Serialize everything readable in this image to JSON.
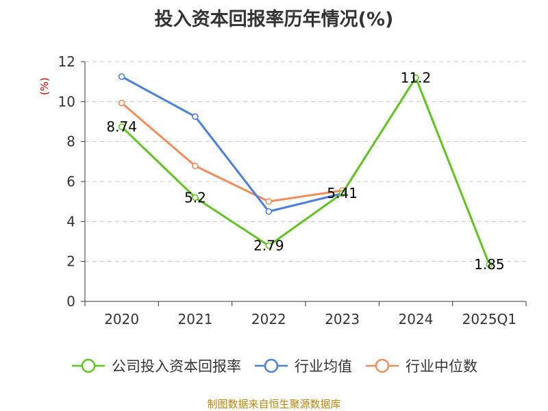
{
  "chart_data": {
    "type": "line",
    "title": "投入资本回报率历年情况(%)",
    "ylabel": "(%)",
    "xlabel": "",
    "categories": [
      "2020",
      "2021",
      "2022",
      "2023",
      "2024",
      "2025Q1"
    ],
    "ylim": [
      0,
      12
    ],
    "yticks": [
      0,
      2,
      4,
      6,
      8,
      10,
      12
    ],
    "grid": true,
    "series": [
      {
        "name": "公司投入资本回报率",
        "color": "#5fc41f",
        "values": [
          8.74,
          5.2,
          2.79,
          5.41,
          11.2,
          1.85
        ],
        "labels": [
          "8.74",
          "5.2",
          "2.79",
          "5.41",
          "11.2",
          "1.85"
        ]
      },
      {
        "name": "行业均值",
        "color": "#4a7fdc",
        "values": [
          11.25,
          9.25,
          4.5,
          5.4,
          null,
          null
        ]
      },
      {
        "name": "行业中位数",
        "color": "#f28c5a",
        "values": [
          9.93,
          6.78,
          5.0,
          5.55,
          null,
          null
        ]
      }
    ],
    "legend_position": "bottom"
  },
  "source": "制图数据来自恒生聚源数据库"
}
